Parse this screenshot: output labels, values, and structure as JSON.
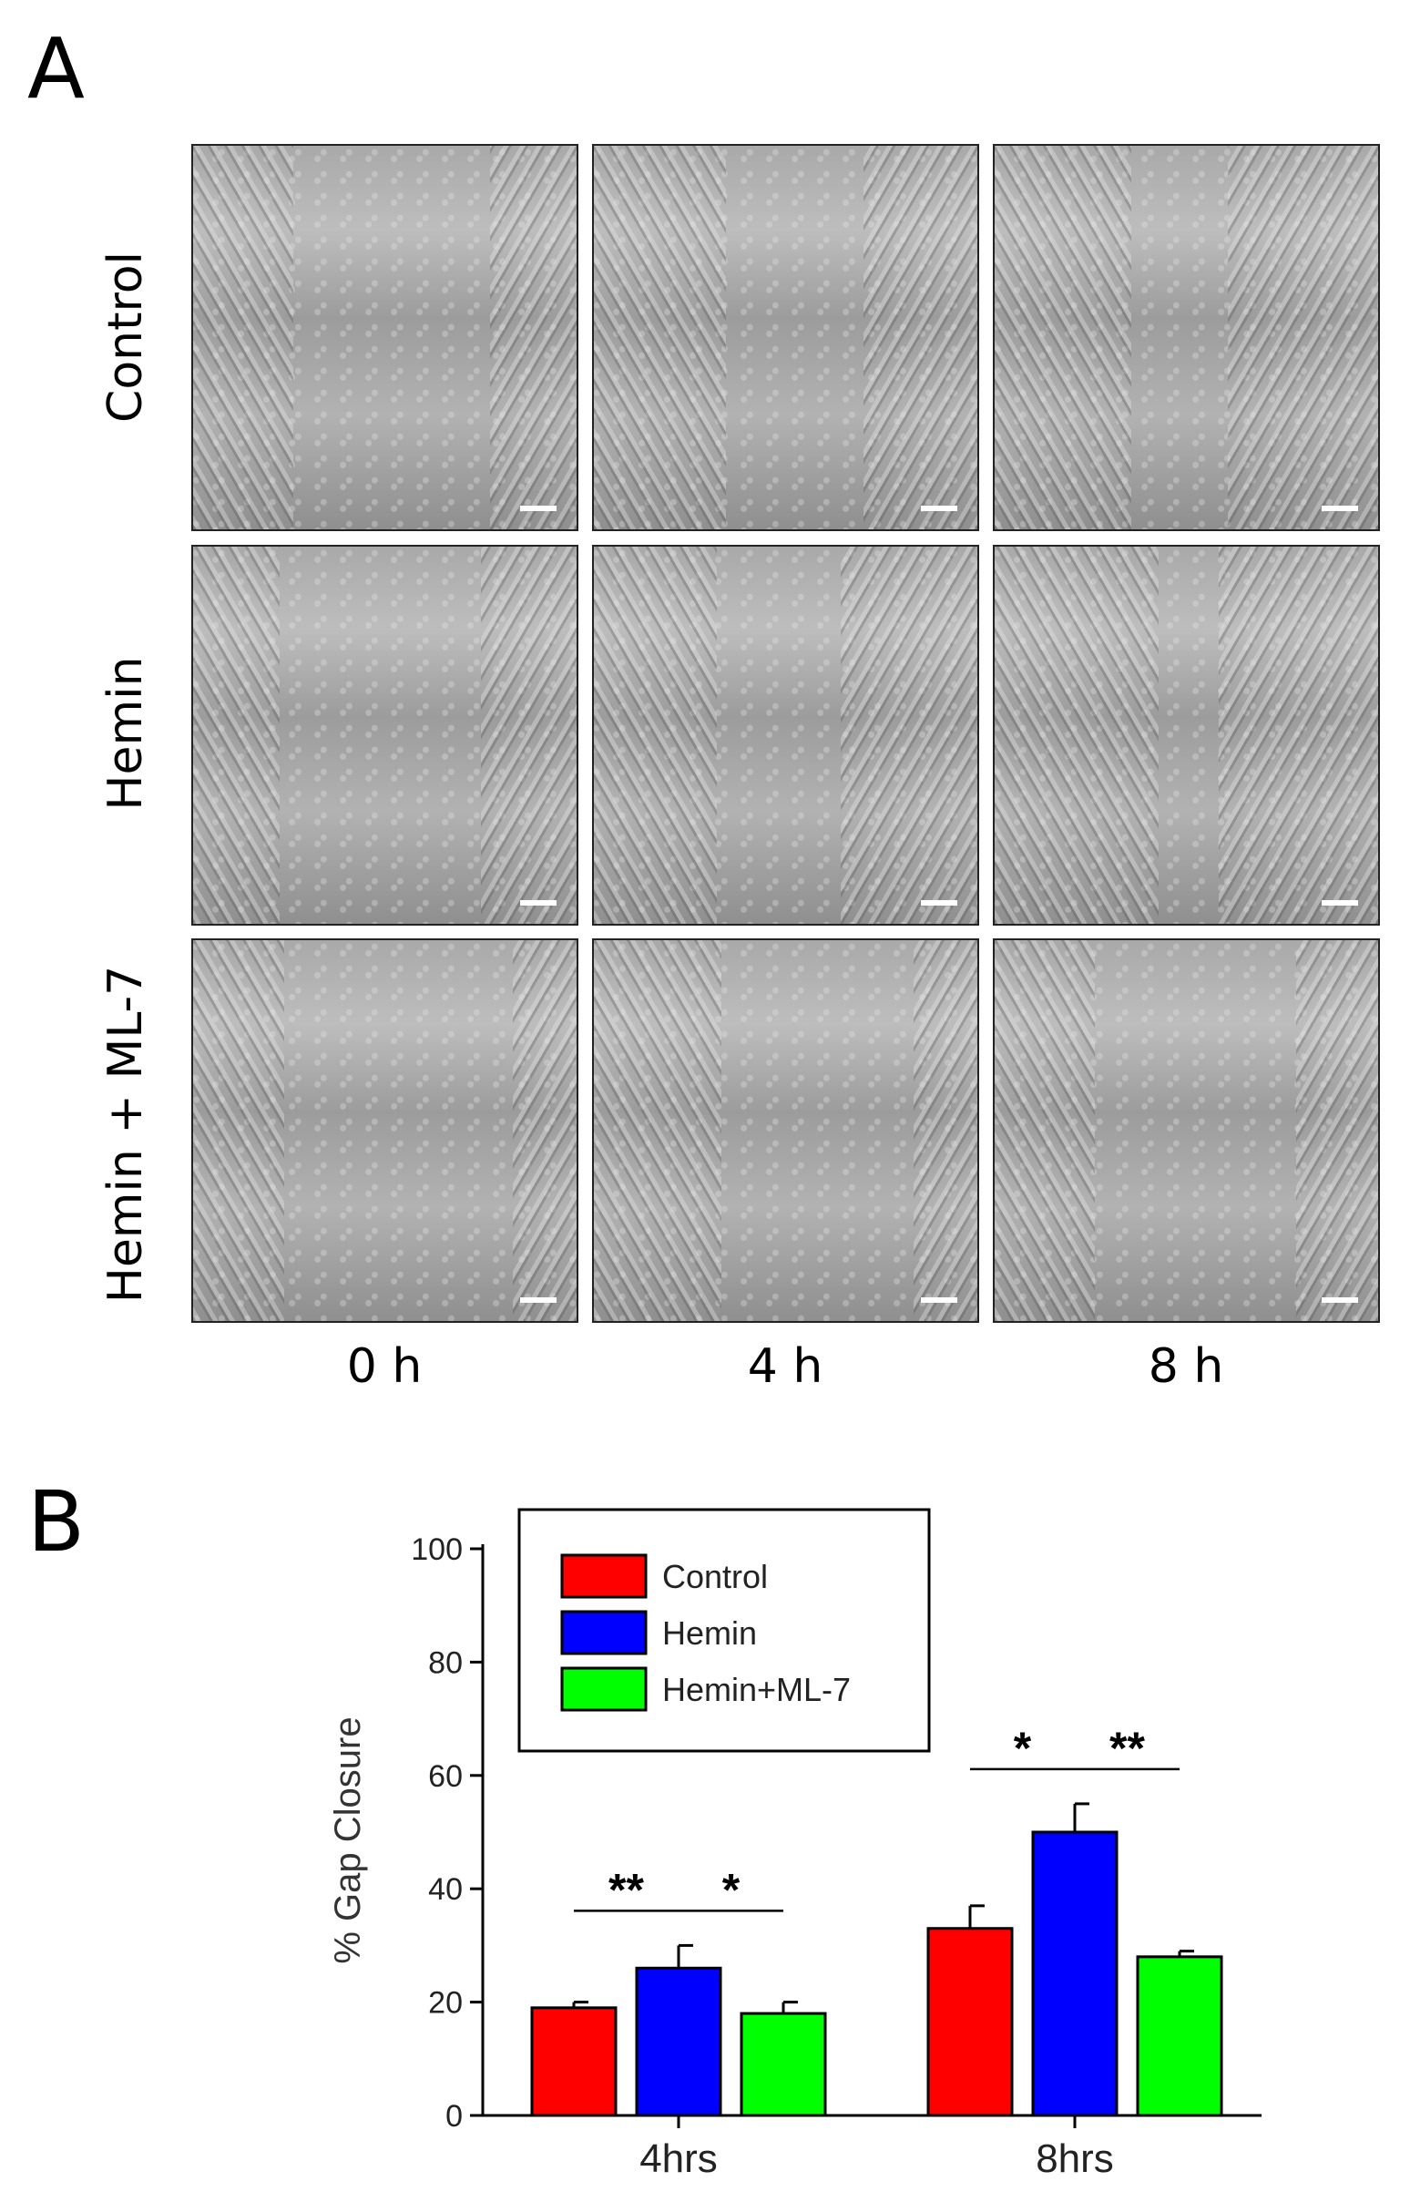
{
  "panel_a": {
    "letter": "A",
    "row_labels": [
      "Control",
      "Hemin",
      "Hemin + ML-7"
    ],
    "time_labels": [
      "0 h",
      "4 h",
      "8 h"
    ]
  },
  "panel_b": {
    "letter": "B"
  },
  "chart_data": {
    "type": "bar",
    "title": "",
    "xlabel": "",
    "ylabel": "% Gap Closure",
    "ylim": [
      0,
      100
    ],
    "yticks": [
      0,
      20,
      40,
      60,
      80,
      100
    ],
    "categories": [
      "4hrs",
      "8hrs"
    ],
    "series": [
      {
        "name": "Control",
        "color": "#ff0000",
        "values": [
          19,
          33
        ],
        "errors": [
          1,
          4
        ]
      },
      {
        "name": "Hemin",
        "color": "#0000ff",
        "values": [
          26,
          50
        ],
        "errors": [
          4,
          5
        ]
      },
      {
        "name": "Hemin+ML-7",
        "color": "#00ff00",
        "values": [
          18,
          28
        ],
        "errors": [
          2,
          1
        ]
      }
    ],
    "legend": "top-left",
    "grid": false,
    "annotations": [
      {
        "category": "4hrs",
        "from": "Control",
        "to": "Hemin",
        "label": "**"
      },
      {
        "category": "4hrs",
        "from": "Hemin",
        "to": "Hemin+ML-7",
        "label": "*"
      },
      {
        "category": "8hrs",
        "from": "Control",
        "to": "Hemin",
        "label": "*"
      },
      {
        "category": "8hrs",
        "from": "Hemin",
        "to": "Hemin+ML-7",
        "label": "**"
      }
    ]
  }
}
